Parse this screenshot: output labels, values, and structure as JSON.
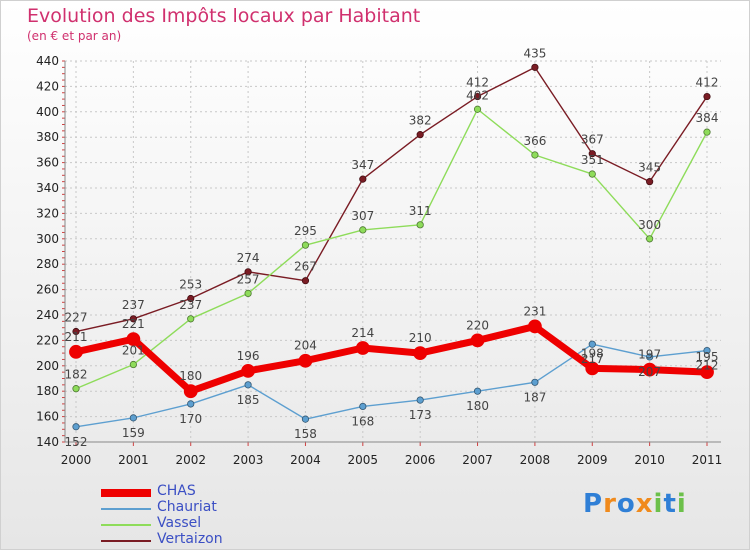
{
  "title": "Evolution des Impôts locaux par Habitant",
  "subtitle": "(en € et par an)",
  "logo": "Proxiti",
  "chart_data": {
    "type": "line",
    "title": "Evolution des Impôts locaux par Habitant",
    "subtitle": "(en € et par an)",
    "xlabel": "",
    "ylabel": "",
    "ylim": [
      140,
      440
    ],
    "y_ticks": [
      140,
      160,
      180,
      200,
      220,
      240,
      260,
      280,
      300,
      320,
      340,
      360,
      380,
      400,
      420,
      440
    ],
    "categories": [
      "2000",
      "2001",
      "2002",
      "2003",
      "2004",
      "2005",
      "2006",
      "2007",
      "2008",
      "2009",
      "2010",
      "2011"
    ],
    "legend_position": "bottom-left",
    "series": [
      {
        "name": "Vertaizon",
        "color": "#7a1c24",
        "values": [
          227,
          237,
          253,
          274,
          267,
          347,
          382,
          412,
          435,
          367,
          345,
          412
        ]
      },
      {
        "name": "Vassel",
        "color": "#8edc5a",
        "values": [
          182,
          201,
          237,
          257,
          295,
          307,
          311,
          402,
          366,
          351,
          300,
          384
        ]
      },
      {
        "name": "Chauriat",
        "color": "#5d9fd0",
        "values": [
          152,
          159,
          170,
          185,
          158,
          168,
          173,
          180,
          187,
          217,
          207,
          212
        ]
      },
      {
        "name": "CHAS",
        "color": "#ee0000",
        "values": [
          211,
          221,
          180,
          196,
          204,
          214,
          210,
          220,
          231,
          198,
          197,
          195
        ]
      }
    ],
    "legend": [
      "CHAS",
      "Chauriat",
      "Vassel",
      "Vertaizon"
    ]
  }
}
